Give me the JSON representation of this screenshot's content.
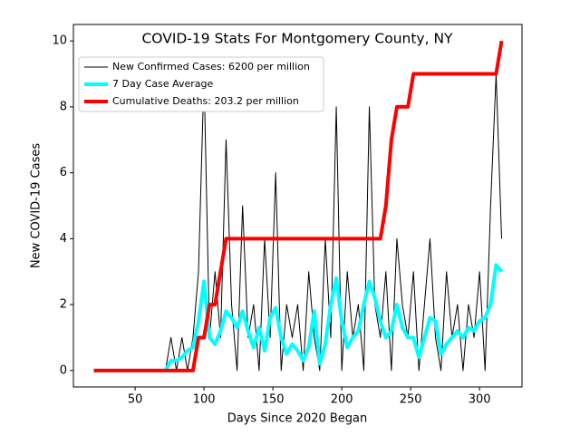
{
  "chart_data": {
    "type": "line",
    "title": "COVID-19 Stats For Montgomery County, NY",
    "x_label": "Days Since 2020 Began",
    "y_label": "New COVID-19 Cases",
    "x": [
      20,
      24,
      28,
      32,
      36,
      40,
      44,
      48,
      52,
      56,
      60,
      64,
      68,
      72,
      76,
      80,
      84,
      88,
      92,
      96,
      100,
      104,
      108,
      112,
      116,
      120,
      124,
      128,
      132,
      136,
      140,
      144,
      148,
      152,
      156,
      160,
      164,
      168,
      172,
      176,
      180,
      184,
      188,
      192,
      196,
      200,
      204,
      208,
      212,
      216,
      220,
      224,
      228,
      232,
      236,
      240,
      244,
      248,
      252,
      256,
      260,
      264,
      268,
      272,
      276,
      280,
      284,
      288,
      292,
      296,
      300,
      304,
      308,
      312,
      316
    ],
    "series": [
      {
        "name": "New Confirmed Cases: 6200 per million",
        "color": "#000000",
        "width": 1,
        "values": [
          0,
          0,
          0,
          0,
          0,
          0,
          0,
          0,
          0,
          0,
          0,
          0,
          0,
          0,
          1,
          0,
          1,
          0,
          1,
          3,
          9,
          1,
          3,
          1,
          7,
          2,
          0,
          5,
          1,
          2,
          0,
          4,
          1,
          6,
          0,
          2,
          1,
          2,
          0,
          3,
          1,
          0,
          4,
          1,
          8,
          0,
          3,
          1,
          2,
          0,
          8,
          2,
          1,
          3,
          0,
          4,
          2,
          1,
          3,
          0,
          2,
          4,
          1,
          0,
          3,
          1,
          2,
          0,
          2,
          1,
          3,
          0,
          5,
          9,
          4
        ]
      },
      {
        "name": "7 Day Case Average",
        "color": "#00ffff",
        "width": 4,
        "values": [
          0,
          0,
          0,
          0,
          0,
          0,
          0,
          0,
          0,
          0,
          0,
          0,
          0,
          0,
          0.3,
          0.3,
          0.4,
          0.6,
          0.7,
          1.5,
          2.7,
          1.0,
          0.8,
          1.2,
          1.8,
          1.6,
          1.3,
          1.8,
          1.2,
          0.7,
          1.3,
          0.6,
          1.6,
          1.9,
          1.0,
          0.5,
          0.8,
          0.6,
          0.3,
          0.7,
          1.8,
          0.2,
          0.8,
          2.0,
          2.8,
          1.5,
          0.7,
          1.0,
          1.2,
          2.0,
          2.7,
          2.2,
          1.5,
          1.0,
          1.2,
          2.0,
          1.3,
          1.0,
          1.0,
          0.4,
          1.0,
          1.6,
          1.5,
          0.5,
          0.8,
          1.0,
          1.2,
          1.0,
          1.3,
          1.2,
          1.5,
          1.6,
          2.0,
          3.2,
          3.0
        ]
      },
      {
        "name": "Cumulative Deaths: 203.2 per million",
        "color": "#ff0000",
        "width": 4,
        "values": [
          0,
          0,
          0,
          0,
          0,
          0,
          0,
          0,
          0,
          0,
          0,
          0,
          0,
          0,
          0,
          0,
          0,
          0,
          0,
          1,
          1,
          2,
          2,
          3,
          4,
          4,
          4,
          4,
          4,
          4,
          4,
          4,
          4,
          4,
          4,
          4,
          4,
          4,
          4,
          4,
          4,
          4,
          4,
          4,
          4,
          4,
          4,
          4,
          4,
          4,
          4,
          4,
          4,
          5,
          7,
          8,
          8,
          8,
          9,
          9,
          9,
          9,
          9,
          9,
          9,
          9,
          9,
          9,
          9,
          9,
          9,
          9,
          9,
          9,
          10
        ]
      }
    ],
    "xlim": [
      5.2,
      330.8
    ],
    "xticks": [
      50,
      100,
      150,
      200,
      250,
      300
    ],
    "ylim": [
      -0.5,
      10.5
    ],
    "yticks": [
      0,
      2,
      4,
      6,
      8,
      10
    ],
    "grid": false,
    "legend": "upper left"
  }
}
